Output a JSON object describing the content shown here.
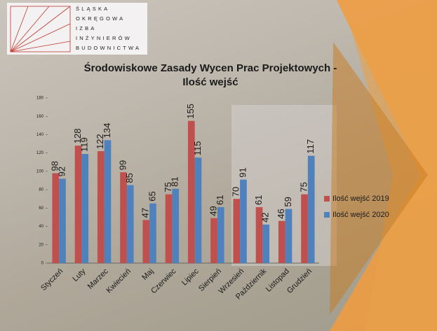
{
  "logo_lines": [
    "ŚLĄSKA",
    "OKRĘGOWA",
    "IZBA",
    "INŻYNIERÓW",
    "BUDOWNICTWA"
  ],
  "chart_data": {
    "type": "bar",
    "title": "Środowiskowe Zasady Wycen Prac Projektowych - Ilość wejść",
    "categories": [
      "Styczeń",
      "Luty",
      "Marzec",
      "Kwiecień",
      "Maj",
      "Czerwiec",
      "Lipiec",
      "Sierpień",
      "Wrzesień",
      "Październik",
      "Listopad",
      "Grudzień"
    ],
    "series": [
      {
        "name": "Ilość wejść 2019",
        "color": "#c0504d",
        "values": [
          98,
          128,
          122,
          99,
          47,
          75,
          155,
          49,
          70,
          61,
          46,
          75
        ]
      },
      {
        "name": "Ilość wejść 2020",
        "color": "#4f81bd",
        "values": [
          92,
          119,
          134,
          85,
          65,
          81,
          115,
          61,
          91,
          42,
          59,
          117
        ]
      }
    ],
    "ylim": [
      0,
      180
    ],
    "yticks": [
      0,
      20,
      40,
      60,
      80,
      100,
      120,
      140,
      160,
      180
    ],
    "legend": "right",
    "data_labels": true
  }
}
